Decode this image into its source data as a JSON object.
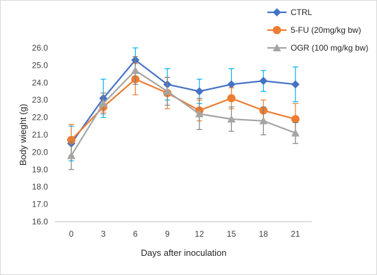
{
  "chart_data": {
    "type": "line",
    "x": [
      0,
      3,
      6,
      9,
      12,
      15,
      18,
      21
    ],
    "xlabel": "Days after inoculation",
    "ylabel": "Body wieght (g)",
    "ylim": [
      16.0,
      26.0
    ],
    "yticks": [
      "16.0",
      "17.0",
      "18.0",
      "19.0",
      "20.0",
      "21.0",
      "22.0",
      "23.0",
      "24.0",
      "25.0",
      "26.0"
    ],
    "xticks": [
      "0",
      "3",
      "6",
      "9",
      "12",
      "15",
      "18",
      "21"
    ],
    "grid": false,
    "legend_position": "top-right",
    "series": [
      {
        "name": "CTRL",
        "color": "#4472c4",
        "error_color": "#00b0f0",
        "marker": "diamond",
        "values": [
          20.5,
          23.1,
          25.3,
          23.9,
          23.5,
          23.9,
          24.1,
          23.9
        ],
        "errors": [
          1.0,
          1.1,
          0.7,
          0.9,
          0.7,
          0.9,
          0.6,
          1.0
        ]
      },
      {
        "name": "5-FU (20mg/kg bw)",
        "color": "#ed7d31",
        "error_color": "#ed7d31",
        "marker": "circle",
        "values": [
          20.7,
          22.6,
          24.2,
          23.4,
          22.4,
          23.1,
          22.4,
          21.9
        ],
        "errors": [
          0.9,
          0.3,
          0.9,
          0.9,
          0.6,
          0.6,
          0.6,
          0.9
        ]
      },
      {
        "name": "OGR (100 mg/kg bw)",
        "color": "#a5a5a5",
        "error_color": "#808080",
        "marker": "triangle",
        "values": [
          19.8,
          22.8,
          24.7,
          23.5,
          22.2,
          21.9,
          21.8,
          21.1
        ],
        "errors": [
          0.8,
          0.6,
          0.8,
          0.8,
          0.9,
          0.7,
          0.8,
          0.6
        ]
      }
    ]
  }
}
